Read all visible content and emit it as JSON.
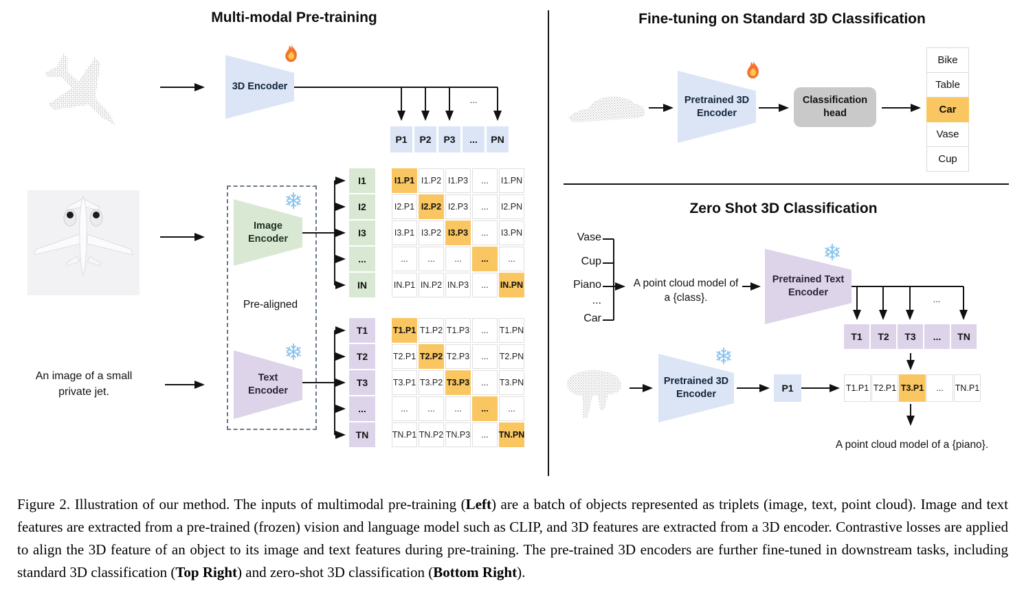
{
  "titles": {
    "pretraining": "Multi-modal Pre-training",
    "finetuning": "Fine-tuning on Standard 3D Classification",
    "zeroshot": "Zero Shot 3D Classification"
  },
  "pretraining": {
    "input_text_line1": "An image of a small",
    "input_text_line2": "private jet.",
    "encoder_3d_label": "3D Encoder",
    "image_encoder_line1": "Image",
    "image_encoder_line2": "Encoder",
    "text_encoder_line1": "Text",
    "text_encoder_line2": "Encoder",
    "pre_aligned": "Pre-aligned",
    "dots": "...",
    "p_row": [
      "P1",
      "P2",
      "P3",
      "...",
      "PN"
    ],
    "i_col": [
      "I1",
      "I2",
      "I3",
      "...",
      "IN"
    ],
    "i_matrix": [
      [
        "I1.P1",
        "I1.P2",
        "I1.P3",
        "...",
        "I1.PN"
      ],
      [
        "I2.P1",
        "I2.P2",
        "I2.P3",
        "...",
        "I2.PN"
      ],
      [
        "I3.P1",
        "I3.P2",
        "I3.P3",
        "...",
        "I3.PN"
      ],
      [
        "...",
        "...",
        "...",
        "...",
        "..."
      ],
      [
        "IN.P1",
        "IN.P2",
        "IN.P3",
        "...",
        "IN.PN"
      ]
    ],
    "t_col": [
      "T1",
      "T2",
      "T3",
      "...",
      "TN"
    ],
    "t_matrix": [
      [
        "T1.P1",
        "T1.P2",
        "T1.P3",
        "...",
        "T1.PN"
      ],
      [
        "T2.P1",
        "T2.P2",
        "T2.P3",
        "...",
        "T2.PN"
      ],
      [
        "T3.P1",
        "T3.P2",
        "T3.P3",
        "...",
        "T3.PN"
      ],
      [
        "...",
        "...",
        "...",
        "...",
        "..."
      ],
      [
        "TN.P1",
        "TN.P2",
        "TN.P3",
        "...",
        "TN.PN"
      ]
    ]
  },
  "finetuning": {
    "encoder_line1": "Pretrained 3D",
    "encoder_line2": "Encoder",
    "head_line1": "Classification",
    "head_line2": "head",
    "classes": [
      "Bike",
      "Table",
      "Car",
      "Vase",
      "Cup"
    ],
    "highlighted_class": "Car"
  },
  "zeroshot": {
    "class_list": [
      "Vase",
      "Cup",
      "Piano",
      "...",
      "Car"
    ],
    "prompt_line1": "A point cloud model of",
    "prompt_line2": "a {class}.",
    "text_encoder_line1": "Pretrained Text",
    "text_encoder_line2": "Encoder",
    "encoder_line1": "Pretrained 3D",
    "encoder_line2": "Encoder",
    "t_row": [
      "T1",
      "T2",
      "T3",
      "...",
      "TN"
    ],
    "p_cell": "P1",
    "result_row": [
      "T1.P1",
      "T2.P1",
      "T3.P1",
      "...",
      "TN.P1"
    ],
    "result_highlight_index": 2,
    "dots": "...",
    "output_text": "A point cloud model of a {piano}."
  },
  "caption": {
    "segments": [
      {
        "text": "Figure 2. Illustration of our method. The inputs of multimodal pre-training ("
      },
      {
        "text": "Left",
        "bold": true
      },
      {
        "text": ") are a batch of objects represented as triplets (image, text, point cloud). Image and text features are extracted from a pre-trained (frozen) vision and language model such as CLIP, and 3D features are extracted from a 3D encoder. Contrastive losses are applied to align the 3D feature of an object to its image and text features during pre-training. The pre-trained 3D encoders are further fine-tuned in downstream tasks, including standard 3D classification ("
      },
      {
        "text": "Top Right",
        "bold": true
      },
      {
        "text": ") and zero-shot 3D classification ("
      },
      {
        "text": "Bottom Right",
        "bold": true
      },
      {
        "text": ")."
      }
    ]
  },
  "colors": {
    "blue": "#dbe5f6",
    "green": "#d9e8d3",
    "purple": "#ded4ea",
    "orange": "#f9c661",
    "head_gray": "#c9c9c9"
  }
}
